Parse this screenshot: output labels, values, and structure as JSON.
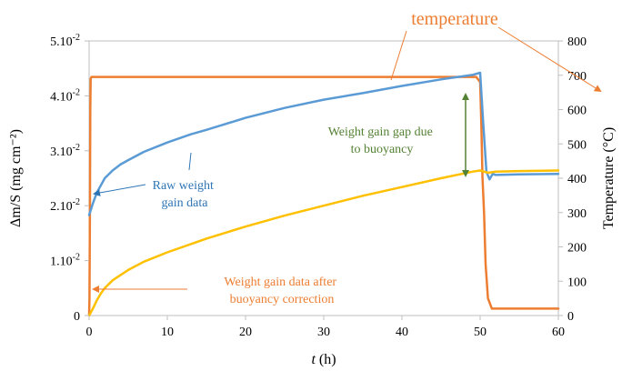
{
  "chart_data": {
    "type": "line",
    "title": "",
    "xlabel_italic": "t",
    "xlabel_unit": " (h)",
    "ylabel": "Δm/S (mg cm⁻²)",
    "y2label": "Temperature (°C)",
    "xlim": [
      0,
      60
    ],
    "ylim": [
      0,
      0.05
    ],
    "y2lim": [
      0,
      800
    ],
    "x_ticks": [
      "0",
      "10",
      "20",
      "30",
      "40",
      "50",
      "60"
    ],
    "y_ticks": [
      {
        "base": "0",
        "exp": ""
      },
      {
        "base": "1.10",
        "exp": "-2"
      },
      {
        "base": "2.10",
        "exp": "-2"
      },
      {
        "base": "3.10",
        "exp": "-2"
      },
      {
        "base": "4.10",
        "exp": "-2"
      },
      {
        "base": "5.10",
        "exp": "-2"
      }
    ],
    "y2_ticks": [
      "0",
      "100",
      "200",
      "300",
      "400",
      "500",
      "600",
      "700",
      "800"
    ],
    "grid": false,
    "series": [
      {
        "name": "temperature",
        "axis": "y2",
        "color": "#ED7D31",
        "x": [
          0,
          0.05,
          0.1,
          0.15,
          0.2,
          0.3,
          0.5,
          1,
          5,
          10,
          20,
          30,
          40,
          49.5,
          50.0,
          50.15,
          50.3,
          50.5,
          50.7,
          51.0,
          51.5,
          55,
          60
        ],
        "y": [
          0,
          50,
          300,
          600,
          690,
          695,
          695,
          695,
          695,
          695,
          695,
          695,
          695,
          695,
          680,
          560,
          400,
          300,
          150,
          50,
          20,
          20,
          20
        ]
      },
      {
        "name": "Raw weight gain data",
        "axis": "y",
        "color": "#5B9BD5",
        "x": [
          0,
          0.5,
          1,
          2,
          3,
          4,
          5,
          7,
          10,
          13,
          15,
          20,
          25,
          30,
          35,
          40,
          45,
          49,
          50,
          50.4,
          50.8,
          51.2,
          51.6,
          52,
          55,
          60
        ],
        "y": [
          0.0183,
          0.0205,
          0.0224,
          0.025,
          0.0264,
          0.0275,
          0.0283,
          0.0298,
          0.0315,
          0.033,
          0.0338,
          0.036,
          0.0378,
          0.0393,
          0.0405,
          0.0418,
          0.043,
          0.0438,
          0.0442,
          0.035,
          0.0262,
          0.0248,
          0.0258,
          0.0256,
          0.0257,
          0.0258
        ]
      },
      {
        "name": "Weight gain data after buoyancy correction",
        "axis": "y",
        "color": "#FFC000",
        "x": [
          0,
          0.5,
          1,
          1.5,
          2,
          3,
          5,
          7,
          10,
          15,
          20,
          25,
          30,
          35,
          40,
          45,
          49,
          50,
          51,
          52,
          55,
          60
        ],
        "y": [
          0.0,
          0.0013,
          0.0028,
          0.004,
          0.005,
          0.0064,
          0.0083,
          0.0098,
          0.0115,
          0.014,
          0.0162,
          0.0182,
          0.02,
          0.0218,
          0.0234,
          0.025,
          0.0262,
          0.0264,
          0.026,
          0.0262,
          0.0263,
          0.0264
        ]
      }
    ],
    "annotations": [
      {
        "text": "temperature",
        "color": "#ED7D31"
      },
      {
        "text": "Raw weight\ngain data",
        "color": "#2E75B6"
      },
      {
        "text": "Weight gain gap due\nto buoyancy",
        "color": "#548235"
      },
      {
        "text": "Weight gain data after\nbuoyancy correction",
        "color": "#ED7D31"
      }
    ]
  }
}
